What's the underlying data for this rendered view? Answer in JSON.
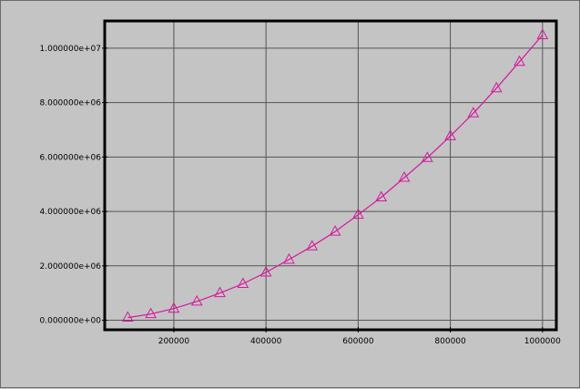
{
  "chart_data": {
    "type": "line",
    "title": "",
    "xlabel": "",
    "ylabel": "",
    "xlim": [
      50000,
      1030000
    ],
    "ylim": [
      -350000,
      11000000
    ],
    "grid": true,
    "legend": "none",
    "x_ticks": [
      {
        "value": 200000,
        "label": "200000"
      },
      {
        "value": 400000,
        "label": "400000"
      },
      {
        "value": 600000,
        "label": "600000"
      },
      {
        "value": 800000,
        "label": "800000"
      },
      {
        "value": 1000000,
        "label": "1000000"
      }
    ],
    "y_ticks": [
      {
        "value": 0,
        "label": "0.000000e+00"
      },
      {
        "value": 2000000,
        "label": "2.000000e+06"
      },
      {
        "value": 4000000,
        "label": "4.000000e+06"
      },
      {
        "value": 6000000,
        "label": "6.000000e+06"
      },
      {
        "value": 8000000,
        "label": "8.000000e+06"
      },
      {
        "value": 10000000,
        "label": "1.000000e+07"
      }
    ],
    "series": [
      {
        "marker": "triangle",
        "color": "#d6179e",
        "x": [
          100000,
          150000,
          200000,
          250000,
          300000,
          350000,
          400000,
          450000,
          500000,
          550000,
          600000,
          650000,
          700000,
          750000,
          800000,
          850000,
          900000,
          950000,
          1000000
        ],
        "y": [
          100000,
          230000,
          430000,
          690000,
          1000000,
          1340000,
          1760000,
          2230000,
          2720000,
          3260000,
          3880000,
          4520000,
          5240000,
          5970000,
          6770000,
          7610000,
          8530000,
          9500000,
          10480000
        ]
      }
    ]
  }
}
